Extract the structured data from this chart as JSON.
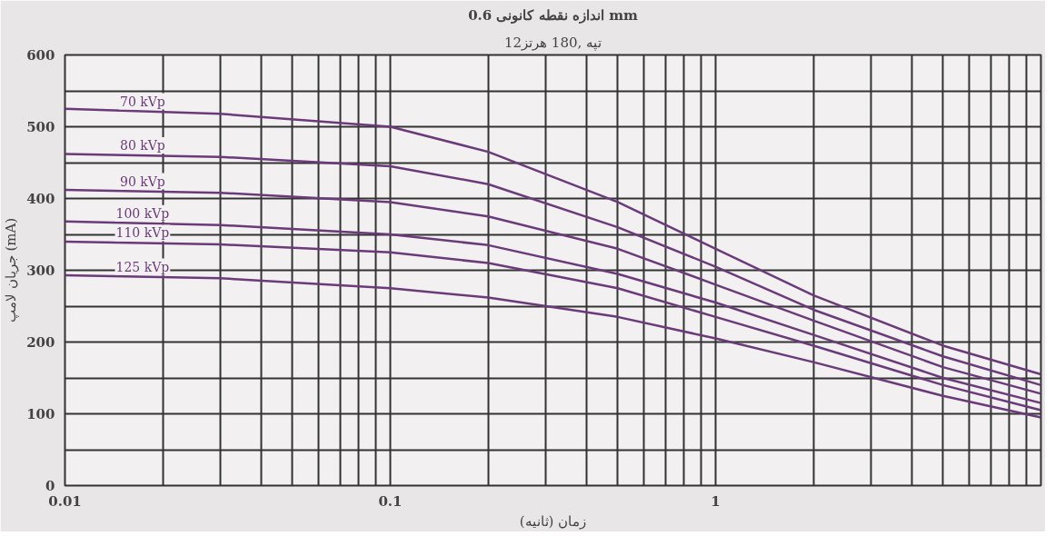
{
  "chart_data": {
    "type": "line",
    "title": "اندازه نقطه کانونی 0.6 mm",
    "subtitle": "12تپه ,180 هرتز",
    "xlabel": "زمان (ثانیه)",
    "ylabel": "جریان لامپ (mA)",
    "log": "x",
    "x": [
      0.01,
      0.03,
      0.1,
      0.2,
      0.5,
      1,
      2,
      5,
      10
    ],
    "series": [
      {
        "name": "70 kVp",
        "color": "#6b3a7a",
        "values": [
          525,
          518,
          500,
          465,
          395,
          330,
          265,
          195,
          155
        ]
      },
      {
        "name": "80 kVp",
        "color": "#6b3a7a",
        "values": [
          462,
          458,
          445,
          420,
          360,
          305,
          245,
          180,
          140
        ]
      },
      {
        "name": "90 kVp",
        "color": "#6b3a7a",
        "values": [
          412,
          408,
          395,
          375,
          330,
          280,
          230,
          165,
          128
        ]
      },
      {
        "name": "100 kVp",
        "color": "#6b3a7a",
        "values": [
          368,
          363,
          350,
          335,
          295,
          255,
          210,
          150,
          115
        ]
      },
      {
        "name": "110 kVp",
        "color": "#6b3a7a",
        "values": [
          340,
          336,
          325,
          310,
          275,
          235,
          195,
          140,
          105
        ]
      },
      {
        "name": "125 kVp",
        "color": "#6b3a7a",
        "values": [
          293,
          289,
          275,
          262,
          235,
          205,
          172,
          125,
          95
        ]
      }
    ],
    "xlim": [
      0.01,
      10
    ],
    "xticks": [
      0.01,
      0.1,
      1
    ],
    "ylim": [
      0,
      600
    ],
    "yticks": [
      0,
      100,
      200,
      300,
      400,
      500,
      600
    ],
    "grid": true,
    "marker": "none",
    "line_style": "solid"
  }
}
